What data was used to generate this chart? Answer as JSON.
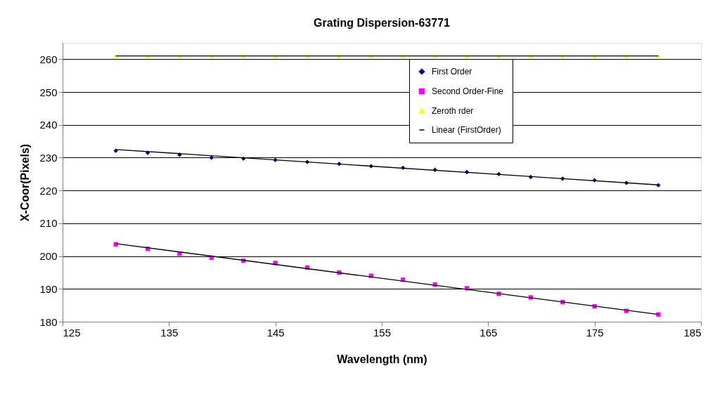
{
  "chart_data": {
    "type": "scatter",
    "title": "Grating Dispersion-63771",
    "xlabel": "Wavelength (nm)",
    "ylabel": "X-Coor(Pixels)",
    "xlim": [
      125,
      185
    ],
    "xticks": [
      125,
      135,
      145,
      155,
      165,
      175,
      185
    ],
    "ylim": [
      180,
      265
    ],
    "yticks": [
      180,
      190,
      200,
      210,
      220,
      230,
      240,
      250,
      260
    ],
    "grid": "y",
    "legend": "top right",
    "series": [
      {
        "name": "First Order",
        "marker": "diamond",
        "color": "#000080",
        "x": [
          130,
          133,
          136,
          139,
          142,
          145,
          148,
          151,
          154,
          157,
          160,
          163,
          166,
          169,
          172,
          175,
          178,
          181
        ],
        "values": [
          232.1,
          231.5,
          230.9,
          230.0,
          229.7,
          229.3,
          228.7,
          228.1,
          227.4,
          226.9,
          226.3,
          225.6,
          225.0,
          224.1,
          223.6,
          223.1,
          222.3,
          221.6
        ]
      },
      {
        "name": "Second Order-Fine",
        "marker": "square",
        "color": "#ff00ff",
        "x": [
          130,
          133,
          136,
          139,
          142,
          145,
          148,
          151,
          154,
          157,
          160,
          163,
          166,
          169,
          172,
          175,
          178,
          181
        ],
        "values": [
          203.6,
          202.2,
          200.7,
          199.5,
          198.6,
          197.9,
          196.5,
          195.0,
          194.0,
          192.8,
          191.3,
          190.2,
          188.5,
          187.4,
          186.0,
          184.7,
          183.3,
          182.2
        ]
      },
      {
        "name": "Zeroth rder",
        "marker": "triangle",
        "color": "#ffff00",
        "x": [
          130,
          133,
          136,
          139,
          142,
          145,
          148,
          151,
          154,
          157,
          160,
          163,
          166,
          169,
          172,
          175,
          178,
          181
        ],
        "values": [
          261,
          261,
          261,
          261,
          261,
          261,
          261,
          261,
          261,
          261,
          261,
          261,
          261,
          261,
          261,
          261,
          261,
          261
        ]
      },
      {
        "name": "Linear (FirstOrder)",
        "type": "line",
        "color": "#000000",
        "x": [
          130,
          181
        ],
        "values": [
          232.5,
          221.7
        ]
      },
      {
        "type": "line",
        "color": "#000000",
        "x": [
          130,
          181
        ],
        "values": [
          203.8,
          182.2
        ]
      },
      {
        "type": "line",
        "color": "#000000",
        "x": [
          130,
          181
        ],
        "values": [
          261,
          261
        ]
      }
    ]
  }
}
